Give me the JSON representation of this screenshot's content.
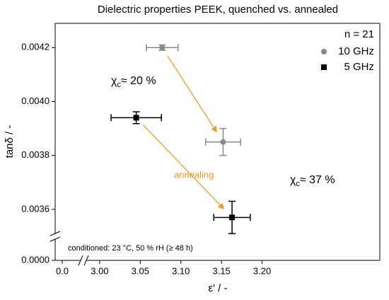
{
  "chart_data": {
    "type": "scatter",
    "title": "Dielectric properties PEEK, quenched vs. annealed",
    "x_label": "ε'  /  -",
    "y_label": "tanδ  /  -",
    "xlim": [
      -0.1,
      3.345
    ],
    "xbreak": [
      0.3,
      2.98
    ],
    "ylim": [
      0,
      0.00429
    ],
    "ybreak": [
      0.0003,
      0.0035
    ],
    "xticks": [
      {
        "value": 0,
        "label": "0.0"
      },
      {
        "value": 3.0,
        "label": "3.00"
      },
      {
        "value": 3.05,
        "label": "3.05"
      },
      {
        "value": 3.1,
        "label": "3.10"
      },
      {
        "value": 3.15,
        "label": "3.15"
      },
      {
        "value": 3.2,
        "label": "3.20"
      }
    ],
    "yticks": [
      {
        "value": 0,
        "label": "0.0000"
      },
      {
        "value": 0.0036,
        "label": "0.0036"
      },
      {
        "value": 0.0038,
        "label": "0.0038"
      },
      {
        "value": 0.004,
        "label": "0.0040"
      },
      {
        "value": 0.0042,
        "label": "0.0042"
      }
    ],
    "legend_title": "n = 21",
    "legend_position": "upper right",
    "series": [
      {
        "name": "10 GHz",
        "color": "#888888",
        "marker": "circle",
        "x": [
          3.077,
          3.152
        ],
        "values": [
          0.0042,
          0.00385
        ],
        "xerr": [
          0.0195,
          0.0215
        ],
        "yerr": [
          1e-05,
          5e-05
        ]
      },
      {
        "name": "5 GHz",
        "color": "#000000",
        "marker": "square",
        "x": [
          3.045,
          3.163
        ],
        "values": [
          0.00394,
          0.00357
        ],
        "xerr": [
          0.031,
          0.0225
        ],
        "yerr": [
          2.2e-05,
          6e-05
        ]
      }
    ],
    "arrow_color": "#f7941d",
    "annotations": [
      {
        "symbol": "χ",
        "subscript": "c",
        "text": "≈ 20 %"
      },
      {
        "symbol": "χ",
        "subscript": "c",
        "text": "≈ 37 %"
      },
      {
        "text": "annealing"
      },
      {
        "text": "conditioned: 23 °C, 50 % rH (≥ 48 h)"
      }
    ]
  }
}
